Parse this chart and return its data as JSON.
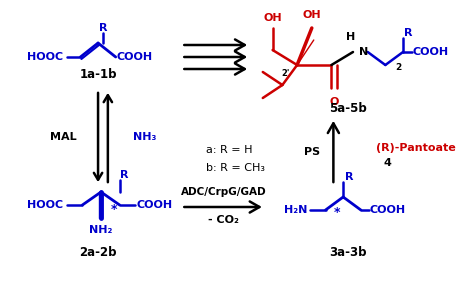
{
  "figsize": [
    4.74,
    2.82
  ],
  "dpi": 100,
  "bg_color": "#ffffff",
  "blue": "#0000CC",
  "red": "#CC0000",
  "black": "#000000",
  "xlim": [
    0,
    474
  ],
  "ylim": [
    0,
    282
  ],
  "compounds": {
    "1a1b_label": "1a-1b",
    "2a2b_label": "2a-2b",
    "3a3b_label": "3a-3b",
    "5a5b_label": "5a-5b"
  },
  "pantoate_line1": "(R)-Pantoate",
  "pantoate_line2": "4",
  "legend_a": "a: R = H",
  "legend_b": "b: R = CH₃",
  "MAL": "MAL",
  "NH3": "NH₃",
  "ADC": "ADC/CrpG/GAD",
  "CO2": "- CO₂",
  "PS": "PS"
}
